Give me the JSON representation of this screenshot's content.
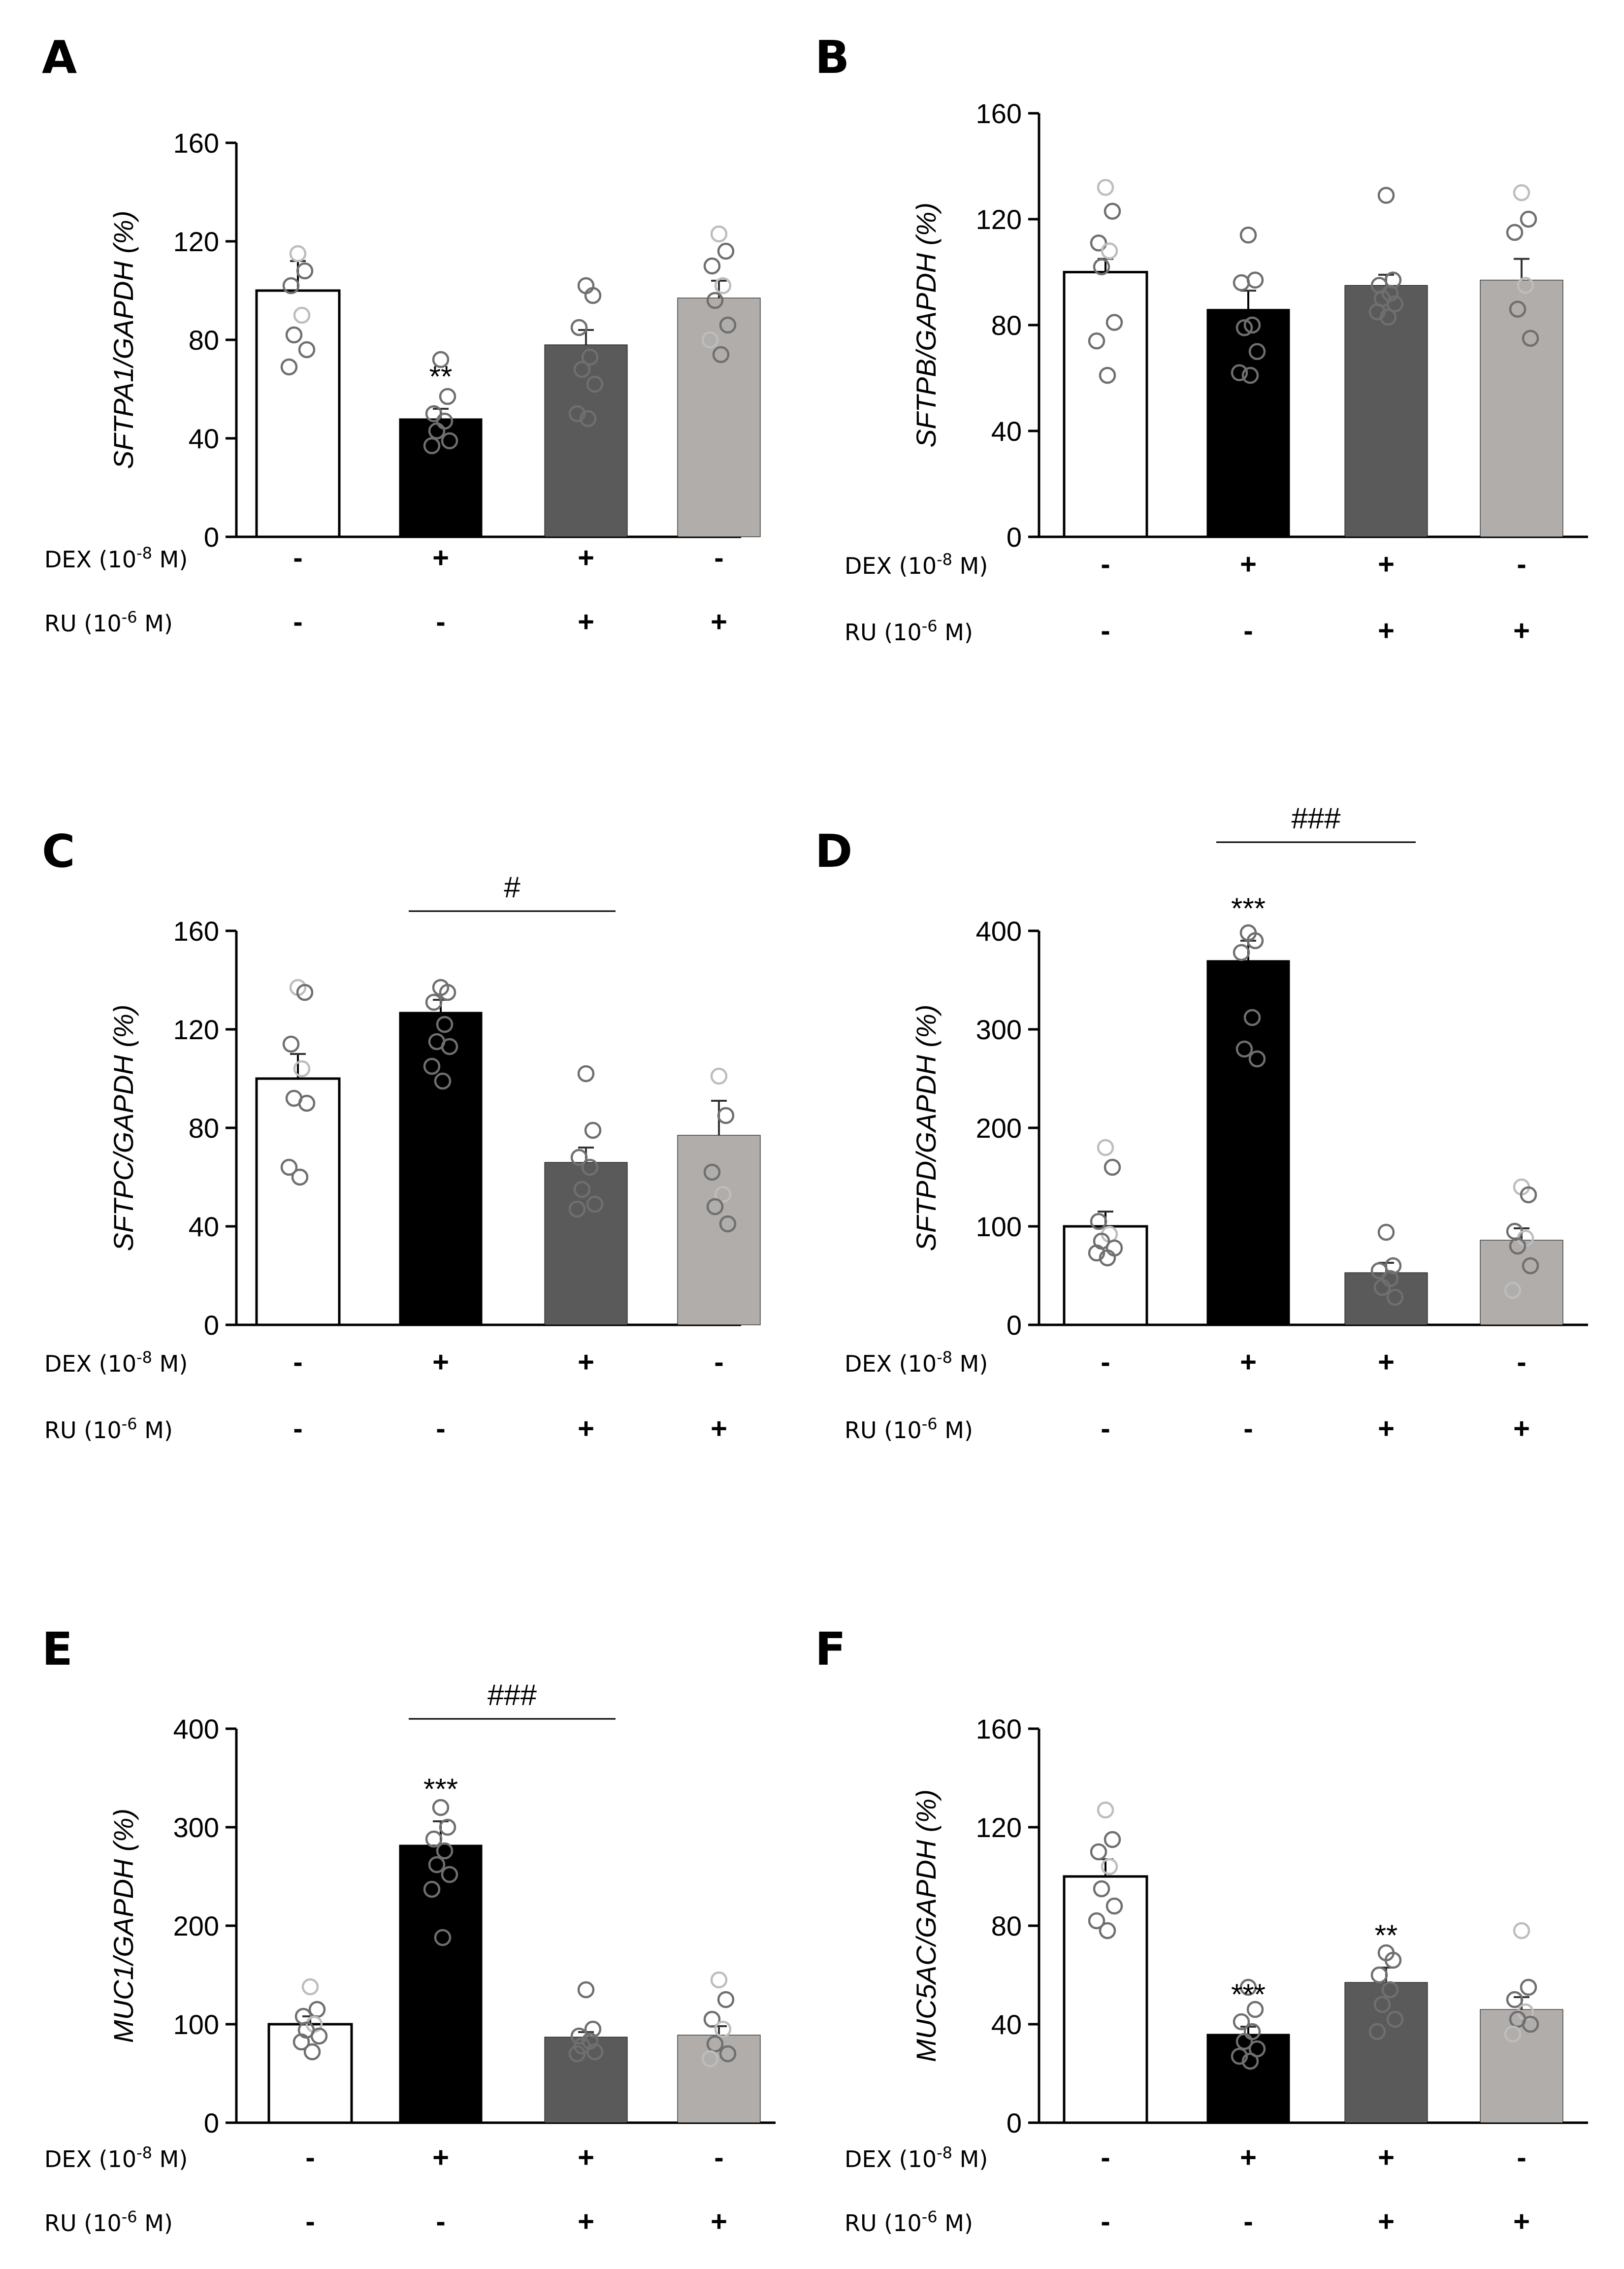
{
  "conditions": {
    "dex_label": "DEX (10",
    "dex_exp": "-8",
    "dex_unit": " M)",
    "ru_label": "RU (10",
    "ru_exp": "-6",
    "ru_unit": " M)",
    "dex_signs": [
      "-",
      "+",
      "+",
      "-"
    ],
    "ru_signs": [
      "-",
      "-",
      "+",
      "+"
    ]
  },
  "colors": {
    "ctrl_fill": "#ffffff",
    "dex_fill": "#000000",
    "dexru_fill": "#5a5a5a",
    "ru_fill": "#b0adab",
    "point_dark": "#6f6f6f",
    "point_light": "#bdbdbd"
  },
  "chart_data": [
    {
      "panel": "A",
      "type": "bar",
      "ylabel": "SFTPA1/GAPDH (%)",
      "ylim": [
        0,
        160
      ],
      "yticks": [
        0,
        40,
        80,
        120,
        160
      ],
      "categories": [
        "DEX- RU-",
        "DEX+ RU-",
        "DEX+ RU+",
        "DEX- RU+"
      ],
      "values": [
        100,
        48,
        78,
        97
      ],
      "errors": [
        12,
        4,
        6,
        7
      ],
      "points": [
        [
          115,
          108,
          102,
          90,
          82,
          76,
          69
        ],
        [
          72,
          57,
          50,
          47,
          43,
          39,
          37
        ],
        [
          102,
          98,
          85,
          73,
          68,
          62,
          50,
          48
        ],
        [
          123,
          116,
          110,
          102,
          96,
          86,
          80,
          74
        ]
      ],
      "annotations": [
        {
          "bar": 1,
          "text": "**"
        }
      ],
      "brackets": []
    },
    {
      "panel": "B",
      "type": "bar",
      "ylabel": "SFTPB/GAPDH (%)",
      "ylim": [
        0,
        160
      ],
      "yticks": [
        0,
        40,
        80,
        120,
        160
      ],
      "categories": [
        "DEX- RU-",
        "DEX+ RU-",
        "DEX+ RU+",
        "DEX- RU+"
      ],
      "values": [
        100,
        86,
        95,
        97
      ],
      "errors": [
        5,
        7,
        4,
        8
      ],
      "points": [
        [
          132,
          123,
          111,
          108,
          102,
          81,
          74,
          61
        ],
        [
          114,
          97,
          96,
          80,
          79,
          70,
          62,
          61
        ],
        [
          129,
          97,
          95,
          92,
          90,
          88,
          85,
          83
        ],
        [
          130,
          120,
          115,
          95,
          86,
          75
        ]
      ],
      "annotations": [],
      "brackets": []
    },
    {
      "panel": "C",
      "type": "bar",
      "ylabel": "SFTPC/GAPDH (%)",
      "ylim": [
        0,
        160
      ],
      "yticks": [
        0,
        40,
        80,
        120,
        160
      ],
      "categories": [
        "DEX- RU-",
        "DEX+ RU-",
        "DEX+ RU+",
        "DEX- RU+"
      ],
      "values": [
        100,
        127,
        66,
        77
      ],
      "errors": [
        10,
        5,
        6,
        14
      ],
      "points": [
        [
          137,
          135,
          114,
          104,
          92,
          90,
          64,
          60
        ],
        [
          137,
          135,
          131,
          122,
          115,
          113,
          105,
          99
        ],
        [
          102,
          79,
          68,
          64,
          55,
          49,
          47
        ],
        [
          101,
          85,
          62,
          53,
          48,
          41
        ]
      ],
      "annotations": [],
      "brackets": [
        {
          "from": 1,
          "to": 2,
          "text": "#"
        }
      ]
    },
    {
      "panel": "D",
      "type": "bar",
      "ylabel": "SFTPD/GAPDH (%)",
      "ylim": [
        0,
        400
      ],
      "yticks": [
        0,
        100,
        200,
        300,
        400
      ],
      "categories": [
        "DEX- RU-",
        "DEX+ RU-",
        "DEX+ RU+",
        "DEX- RU+"
      ],
      "values": [
        100,
        370,
        53,
        86
      ],
      "errors": [
        15,
        20,
        10,
        12
      ],
      "points": [
        [
          180,
          160,
          105,
          92,
          85,
          78,
          73,
          68
        ],
        [
          398,
          390,
          378,
          312,
          280,
          270
        ],
        [
          94,
          60,
          55,
          47,
          38,
          28
        ],
        [
          140,
          132,
          95,
          88,
          80,
          60,
          35
        ]
      ],
      "annotations": [
        {
          "bar": 1,
          "text": "***"
        }
      ],
      "brackets": [
        {
          "from": 1,
          "to": 2,
          "text": "###"
        }
      ]
    },
    {
      "panel": "E",
      "type": "bar",
      "ylabel": "MUC1/GAPDH (%)",
      "ylim": [
        0,
        400
      ],
      "yticks": [
        0,
        100,
        200,
        300,
        400
      ],
      "categories": [
        "DEX- RU-",
        "DEX+ RU-",
        "DEX+ RU+",
        "DEX- RU+"
      ],
      "values": [
        100,
        282,
        87,
        89
      ],
      "errors": [
        8,
        24,
        5,
        9
      ],
      "points": [
        [
          138,
          115,
          108,
          100,
          94,
          88,
          82,
          72
        ],
        [
          320,
          300,
          288,
          276,
          262,
          252,
          237,
          188
        ],
        [
          135,
          95,
          88,
          83,
          78,
          72,
          70
        ],
        [
          145,
          125,
          105,
          95,
          80,
          70,
          65
        ]
      ],
      "annotations": [
        {
          "bar": 1,
          "text": "***"
        }
      ],
      "brackets": [
        {
          "from": 1,
          "to": 2,
          "text": "###"
        }
      ]
    },
    {
      "panel": "F",
      "type": "bar",
      "ylabel": "MUC5AC/GAPDH (%)",
      "ylim": [
        0,
        160
      ],
      "yticks": [
        0,
        40,
        80,
        120,
        160
      ],
      "categories": [
        "DEX- RU-",
        "DEX+ RU-",
        "DEX+ RU+",
        "DEX- RU+"
      ],
      "values": [
        100,
        36,
        57,
        46
      ],
      "errors": [
        7,
        3,
        6,
        5
      ],
      "points": [
        [
          127,
          115,
          110,
          104,
          95,
          88,
          82,
          78
        ],
        [
          55,
          46,
          41,
          37,
          33,
          30,
          27,
          25
        ],
        [
          69,
          66,
          60,
          54,
          48,
          42,
          37
        ],
        [
          78,
          55,
          50,
          45,
          42,
          40,
          36
        ]
      ],
      "annotations": [
        {
          "bar": 1,
          "text": "***"
        },
        {
          "bar": 2,
          "text": "**"
        }
      ],
      "brackets": []
    }
  ]
}
